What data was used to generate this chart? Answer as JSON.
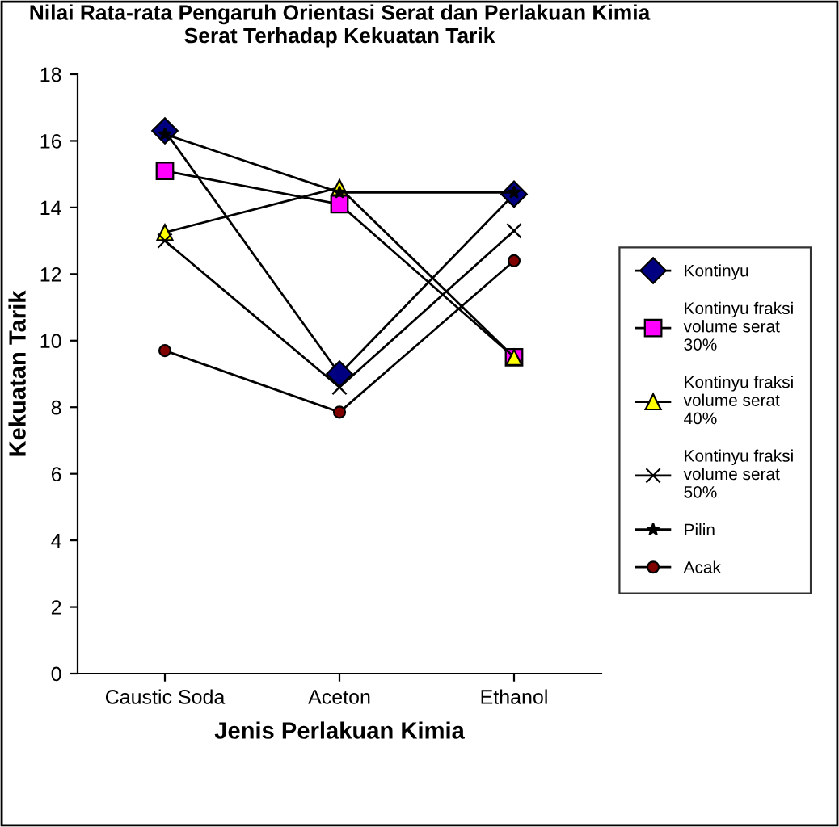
{
  "chart_data": {
    "type": "line",
    "title": "Nilai Rata-rata Pengaruh Orientasi Serat dan Perlakuan Kimia\nSerat Terhadap Kekuatan Tarik",
    "xlabel": "Jenis Perlakuan Kimia",
    "ylabel": "Kekuatan Tarik",
    "categories": [
      "Caustic Soda",
      "Aceton",
      "Ethanol"
    ],
    "series": [
      {
        "name": "Kontinyu",
        "color": "#000080",
        "marker": "diamond",
        "values": [
          16.3,
          9.0,
          14.4
        ]
      },
      {
        "name": "Kontinyu fraksi\nvolume serat\n30%",
        "color": "#ff00ff",
        "marker": "square",
        "values": [
          15.1,
          14.1,
          9.5
        ]
      },
      {
        "name": "Kontinyu fraksi\nvolume serat\n40%",
        "color": "#ffff00",
        "marker": "triangle",
        "values": [
          13.25,
          14.6,
          9.5
        ]
      },
      {
        "name": "Kontinyu fraksi\nvolume serat\n50%",
        "color": "#000000",
        "marker": "cross",
        "values": [
          13.0,
          8.6,
          13.3
        ]
      },
      {
        "name": "Pilin",
        "color": "#000000",
        "marker": "star",
        "values": [
          16.2,
          14.45,
          14.45
        ]
      },
      {
        "name": "Acak",
        "color": "#800000",
        "marker": "circle",
        "values": [
          9.7,
          7.85,
          12.4
        ]
      }
    ],
    "ylim": [
      0,
      18
    ],
    "yticks": [
      0,
      2,
      4,
      6,
      8,
      10,
      12,
      14,
      16,
      18
    ],
    "grid": false,
    "legend": "right",
    "line_style": "solid"
  }
}
